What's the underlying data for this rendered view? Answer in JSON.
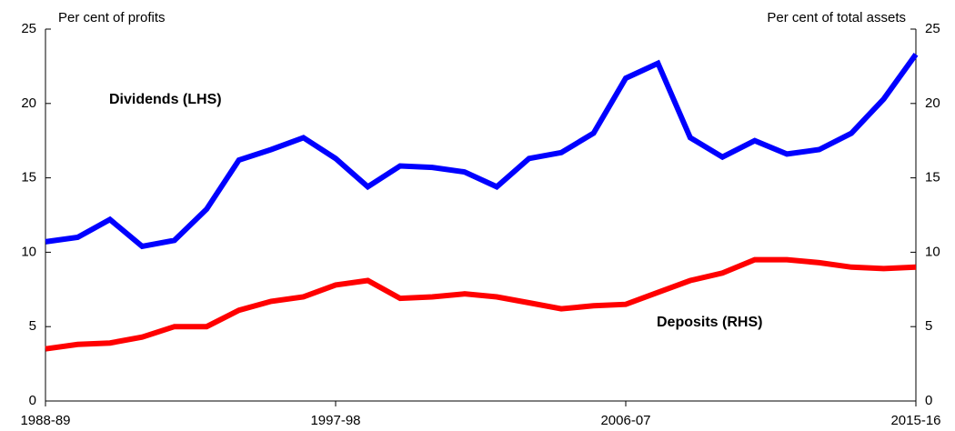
{
  "chart_data": {
    "type": "line",
    "y_label": "Per cent of profits",
    "y2_label": "Per cent of total assets",
    "categories": [
      "1988-89",
      null,
      null,
      null,
      null,
      null,
      null,
      null,
      null,
      "1997-98",
      null,
      null,
      null,
      null,
      null,
      null,
      null,
      null,
      "2006-07",
      null,
      null,
      null,
      null,
      null,
      null,
      null,
      null,
      "2015-16"
    ],
    "series": [
      {
        "name": "Dividends (LHS)",
        "color": "#0000ff",
        "axis": "y",
        "values": [
          10.7,
          11.0,
          12.2,
          10.4,
          10.8,
          12.9,
          16.2,
          16.9,
          17.7,
          16.3,
          14.4,
          15.8,
          15.7,
          15.4,
          14.4,
          16.3,
          16.7,
          18.0,
          21.7,
          22.7,
          17.7,
          16.4,
          17.5,
          16.6,
          16.9,
          18.0,
          20.3,
          23.3
        ]
      },
      {
        "name": "Deposits (RHS)",
        "color": "#ff0000",
        "axis": "y2",
        "values": [
          3.5,
          3.8,
          3.9,
          4.3,
          5.0,
          5.0,
          6.1,
          6.7,
          7.0,
          7.8,
          8.1,
          6.9,
          7.0,
          7.2,
          7.0,
          6.6,
          6.2,
          6.4,
          6.5,
          7.3,
          8.1,
          8.6,
          9.5,
          9.5,
          9.3,
          9.0,
          8.9,
          9.0
        ]
      }
    ],
    "ylim": [
      0,
      25
    ],
    "yticks": [
      0,
      5,
      10,
      15,
      20,
      25
    ],
    "y2lim": [
      0,
      25
    ],
    "y2ticks": [
      0,
      5,
      10,
      15,
      20,
      25
    ],
    "grid": false
  }
}
